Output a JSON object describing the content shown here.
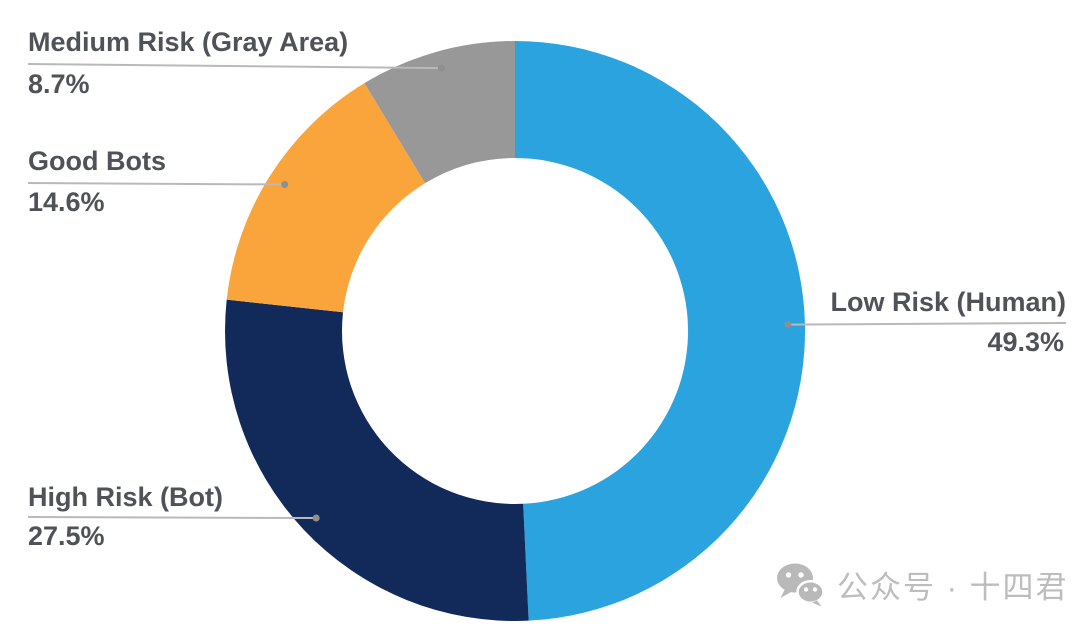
{
  "chart_data": {
    "type": "pie",
    "subtype": "donut",
    "title": "",
    "direction": "clockwise",
    "start_angle_deg": 0,
    "inner_radius_ratio": 0.6,
    "legend_position": "callout-labels",
    "slices": [
      {
        "label": "Low Risk (Human)",
        "value": 49.3,
        "display": "49.3%",
        "color": "#2BA3DF"
      },
      {
        "label": "High Risk (Bot)",
        "value": 27.5,
        "display": "27.5%",
        "color": "#112A5A"
      },
      {
        "label": "Good Bots",
        "value": 14.6,
        "display": "14.6%",
        "color": "#FAA43C"
      },
      {
        "label": "Medium Risk (Gray Area)",
        "value": 8.7,
        "display": "8.7%",
        "color": "#989898"
      }
    ],
    "leader_line_color": "#b9b9b9",
    "leader_dot_color": "#8f8f8f",
    "label_text_color": "#4f5257"
  },
  "watermark": {
    "icon": "wechat-icon",
    "text": "公众号 · 十四君",
    "color": "#bdbdbd"
  }
}
